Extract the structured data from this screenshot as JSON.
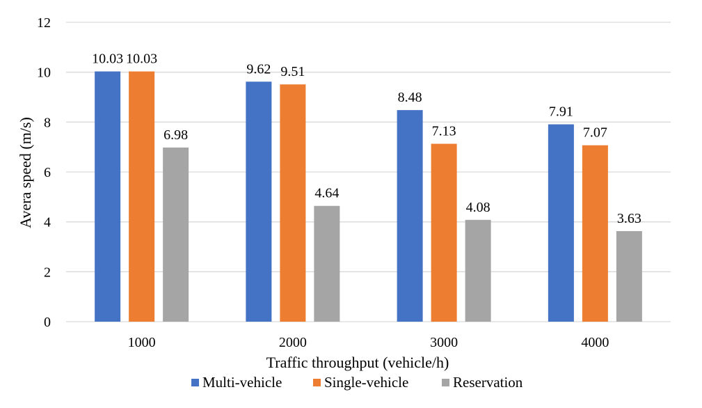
{
  "chart_data": {
    "type": "bar",
    "title": "",
    "xlabel": "Traffic throughput (vehicle/h)",
    "ylabel": "Avera speed (m/s)",
    "categories": [
      "1000",
      "2000",
      "3000",
      "4000"
    ],
    "ylim": [
      0,
      12
    ],
    "yticks": [
      0,
      2,
      4,
      6,
      8,
      10,
      12
    ],
    "ytick_labels": [
      "0",
      "2",
      "4",
      "6",
      "8",
      "10",
      "12"
    ],
    "grid": true,
    "legend_position": "bottom",
    "series": [
      {
        "name": "Multi-vehicle",
        "color": "#4472c4",
        "values": [
          10.03,
          9.62,
          8.48,
          7.91
        ],
        "labels": [
          "10.03",
          "9.62",
          "8.48",
          "7.91"
        ]
      },
      {
        "name": "Single-vehicle",
        "color": "#ed7d31",
        "values": [
          10.03,
          9.51,
          7.13,
          7.07
        ],
        "labels": [
          "10.03",
          "9.51",
          "7.13",
          "7.07"
        ]
      },
      {
        "name": "Reservation",
        "color": "#a5a5a5",
        "values": [
          6.98,
          4.64,
          4.08,
          3.63
        ],
        "labels": [
          "6.98",
          "4.64",
          "4.08",
          "3.63"
        ]
      }
    ]
  }
}
